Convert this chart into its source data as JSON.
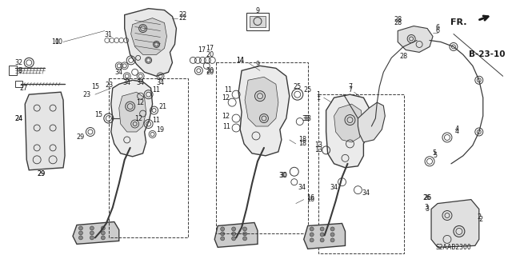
{
  "fig_width": 6.4,
  "fig_height": 3.19,
  "dpi": 100,
  "background_color": "#ffffff",
  "line_color": "#3a3a3a",
  "text_color": "#1a1a1a",
  "diagram_label": "S2AAB2300",
  "ref_label": "B-23-10",
  "fr_label": "FR.",
  "lw_main": 1.0,
  "lw_thin": 0.6,
  "fontsize_parts": 5.8
}
